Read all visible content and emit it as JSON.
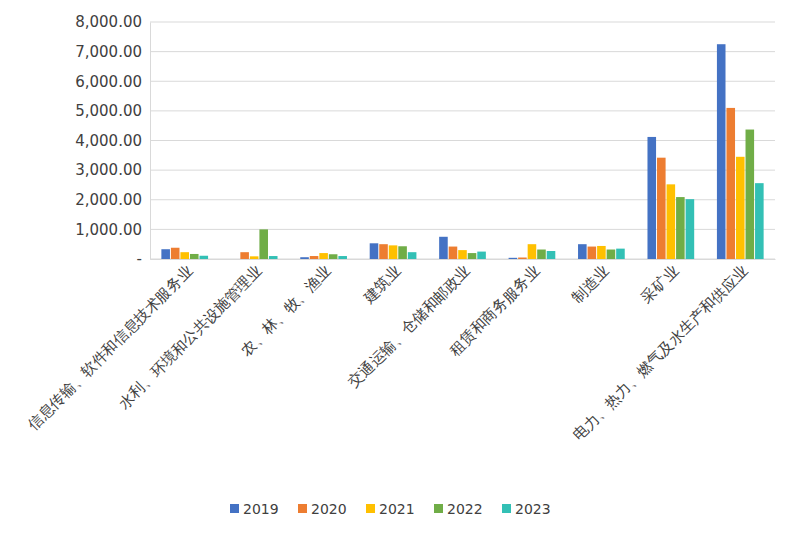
{
  "chart_data": {
    "type": "bar",
    "categories": [
      "信息传输、软件和信息技术服务业",
      "水利、环境和公共设施管理业",
      "农、林、牧、渔业",
      "建筑业",
      "交通运输、仓储和邮政业",
      "租赁和商务服务业",
      "制造业",
      "采矿业",
      "电力、热力、燃气及水生产和供应业"
    ],
    "series": [
      {
        "name": "2019",
        "color": "#4472c4",
        "values": [
          330,
          0,
          60,
          530,
          750,
          40,
          500,
          4120,
          7250
        ]
      },
      {
        "name": "2020",
        "color": "#ed7d31",
        "values": [
          380,
          230,
          100,
          500,
          420,
          50,
          420,
          3420,
          5100
        ]
      },
      {
        "name": "2021",
        "color": "#ffc000",
        "values": [
          230,
          90,
          200,
          460,
          300,
          500,
          440,
          2520,
          3450
        ]
      },
      {
        "name": "2022",
        "color": "#70ad47",
        "values": [
          170,
          1000,
          160,
          430,
          200,
          320,
          320,
          2090,
          4370
        ]
      },
      {
        "name": "2023",
        "color": "#33c0b5",
        "values": [
          110,
          100,
          100,
          230,
          250,
          270,
          350,
          2020,
          2560
        ]
      }
    ],
    "ylim": [
      0,
      8000
    ],
    "yticks": [
      {
        "value": 0,
        "label": "-"
      },
      {
        "value": 1000,
        "label": "1,000.00"
      },
      {
        "value": 2000,
        "label": "2,000.00"
      },
      {
        "value": 3000,
        "label": "3,000.00"
      },
      {
        "value": 4000,
        "label": "4,000.00"
      },
      {
        "value": 5000,
        "label": "5,000.00"
      },
      {
        "value": 6000,
        "label": "6,000.00"
      },
      {
        "value": 7000,
        "label": "7,000.00"
      },
      {
        "value": 8000,
        "label": "8,000.00"
      }
    ],
    "grid": true,
    "legend": "bottom"
  }
}
